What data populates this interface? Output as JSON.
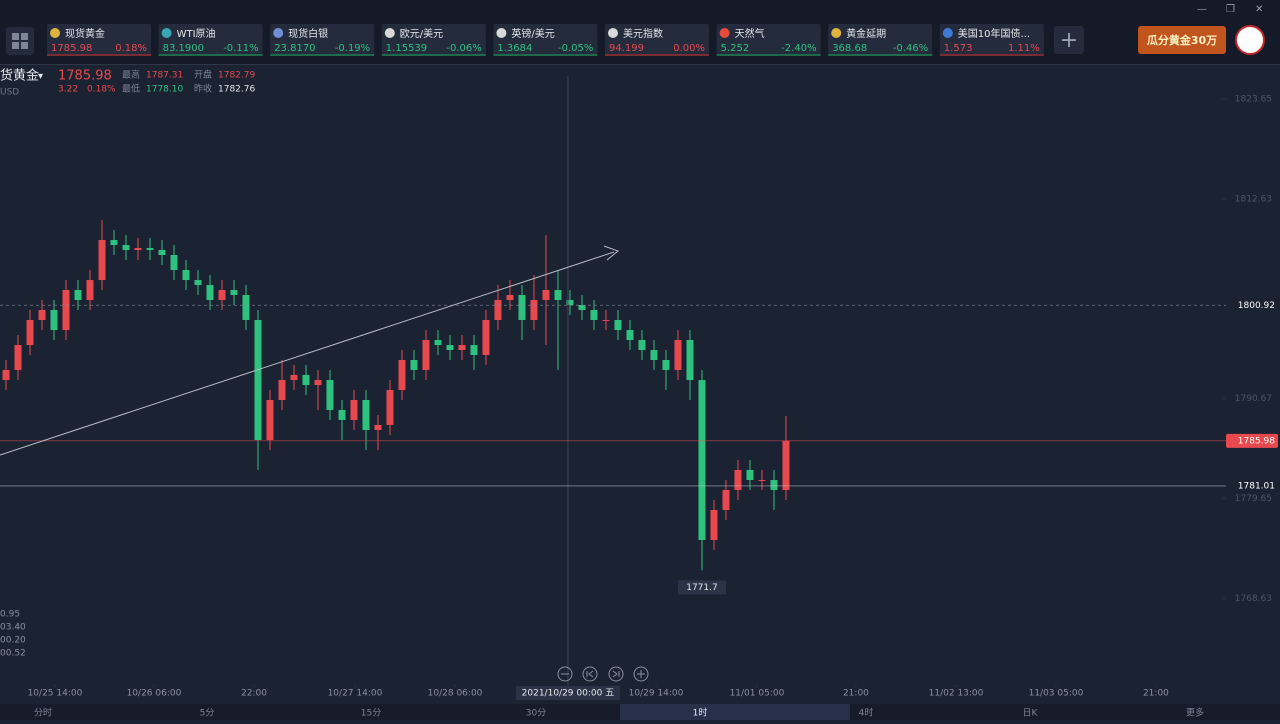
{
  "tickers": [
    {
      "name": "现货黄金",
      "price": "1785.98",
      "change": "0.18%"
    },
    {
      "name": "WTI原油",
      "price": "83.1900",
      "change": "-0.11%"
    },
    {
      "name": "现货白银",
      "price": "23.8170",
      "change": "-0.19%"
    },
    {
      "name": "欧元/美元",
      "price": "1.15539",
      "change": "-0.06%"
    },
    {
      "name": "英镑/美元",
      "price": "1.3684",
      "change": "-0.05%"
    },
    {
      "name": "美元指数",
      "price": "94.199",
      "change": "0.00%"
    },
    {
      "name": "天然气",
      "price": "5.252",
      "change": "-2.40%"
    },
    {
      "name": "黄金延期",
      "price": "368.68",
      "change": "-0.46%"
    },
    {
      "name": "美国10年国债...",
      "price": "1.573",
      "change": "1.11%"
    }
  ],
  "ad": {
    "text": "瓜分黄金30万"
  },
  "header": {
    "symbol": "货黄金",
    "currency": "USD",
    "price": "1785.98",
    "change": "3.22",
    "change_pct": "0.18%",
    "stats": [
      {
        "label": "最高",
        "value": "1787.31"
      },
      {
        "label": "开盘",
        "value": "1782.79"
      },
      {
        "label": "最低",
        "value": "1778.10"
      },
      {
        "label": "昨收",
        "value": "1782.76"
      }
    ]
  },
  "sub_indicator_labels": [
    "0.95",
    "03.40",
    "00.20",
    "00.52"
  ],
  "timeframes": [
    "分时",
    "5分",
    "15分",
    "30分",
    "1时",
    "4时",
    "日K",
    "更多"
  ],
  "chart_data": {
    "type": "candlestick",
    "open": [
      1792.68,
      1793.79,
      1796.54,
      1799.3,
      1800.4,
      1798.19,
      1802.6,
      1801.5,
      1803.7,
      1808.11,
      1807.56,
      1807.01,
      1807.23,
      1807.01,
      1806.46,
      1804.81,
      1803.7,
      1803.15,
      1801.5,
      1802.6,
      1802.05,
      1799.3,
      1786.07,
      1790.48,
      1792.68,
      1793.24,
      1792.13,
      1792.68,
      1789.38,
      1788.28,
      1790.48,
      1787.17,
      1787.73,
      1791.58,
      1794.89,
      1793.79,
      1797.09,
      1796.54,
      1795.99,
      1796.54,
      1795.44,
      1799.3,
      1801.5,
      1802.05,
      1799.3,
      1801.5,
      1802.6,
      1801.5,
      1800.95,
      1800.4,
      1799.3,
      1799.3,
      1798.19,
      1797.09,
      1795.99,
      1794.89,
      1793.79,
      1797.09,
      1792.68,
      1775.05,
      1778.36,
      1780.56,
      1782.77,
      1781.66,
      1781.66,
      1780.56
    ],
    "high": [
      1794.89,
      1797.64,
      1800.4,
      1801.5,
      1801.5,
      1803.7,
      1803.7,
      1804.8,
      1810.3,
      1809.21,
      1808.66,
      1808.33,
      1808.33,
      1808.11,
      1807.56,
      1805.91,
      1804.8,
      1804.25,
      1803.7,
      1803.7,
      1803.15,
      1800.4,
      1791.58,
      1794.89,
      1794.34,
      1794.34,
      1793.78,
      1793.78,
      1790.48,
      1791.58,
      1791.58,
      1788.83,
      1792.68,
      1795.99,
      1795.99,
      1798.19,
      1798.19,
      1797.64,
      1797.64,
      1797.64,
      1800.4,
      1803.15,
      1803.7,
      1803.15,
      1804.25,
      1808.66,
      1804.8,
      1802.6,
      1802.05,
      1801.5,
      1800.4,
      1800.4,
      1799.3,
      1798.19,
      1797.09,
      1795.99,
      1798.19,
      1798.19,
      1793.78,
      1779.46,
      1781.66,
      1783.87,
      1783.87,
      1782.77,
      1782.77,
      1788.7
    ],
    "low": [
      1791.58,
      1792.69,
      1795.44,
      1798.2,
      1797.09,
      1797.09,
      1800.4,
      1800.4,
      1802.6,
      1806.46,
      1805.91,
      1805.91,
      1805.91,
      1805.36,
      1803.71,
      1802.6,
      1802.05,
      1800.4,
      1800.4,
      1800.95,
      1798.2,
      1782.77,
      1784.97,
      1789.38,
      1791.58,
      1791.03,
      1789.38,
      1788.28,
      1786.07,
      1787.17,
      1784.97,
      1784.97,
      1786.63,
      1790.48,
      1792.69,
      1792.69,
      1795.44,
      1794.89,
      1794.89,
      1793.79,
      1794.34,
      1798.2,
      1800.4,
      1797.09,
      1798.2,
      1796.54,
      1793.79,
      1799.85,
      1799.3,
      1798.2,
      1798.19,
      1797.09,
      1795.99,
      1794.89,
      1793.79,
      1791.58,
      1792.69,
      1790.48,
      1771.7,
      1773.95,
      1777.26,
      1779.46,
      1780.56,
      1780.56,
      1778.36,
      1779.46
    ],
    "close": [
      1793.79,
      1796.54,
      1799.3,
      1800.4,
      1798.19,
      1802.6,
      1801.5,
      1803.7,
      1808.11,
      1807.56,
      1807.01,
      1807.23,
      1807.01,
      1806.46,
      1804.81,
      1803.7,
      1803.15,
      1801.5,
      1802.6,
      1802.05,
      1799.3,
      1786.07,
      1790.48,
      1792.68,
      1793.24,
      1792.13,
      1792.68,
      1789.38,
      1788.28,
      1790.48,
      1787.17,
      1787.73,
      1791.58,
      1794.89,
      1793.79,
      1797.09,
      1796.54,
      1795.99,
      1796.54,
      1795.44,
      1799.3,
      1801.5,
      1802.05,
      1799.3,
      1801.5,
      1802.6,
      1801.5,
      1800.95,
      1800.4,
      1799.3,
      1799.3,
      1798.19,
      1797.09,
      1795.99,
      1794.89,
      1793.79,
      1797.09,
      1792.68,
      1775.05,
      1778.36,
      1780.56,
      1782.77,
      1781.66,
      1781.66,
      1780.56,
      1785.98
    ],
    "up_color": "#e8494f",
    "down_color": "#2ec27e",
    "xlim": [
      -0.5,
      101.17
    ],
    "xticks": [
      {
        "value": 4.08,
        "label": "10/25 14:00"
      },
      {
        "value": 12.33,
        "label": "10/26 06:00"
      },
      {
        "value": 20.67,
        "label": "22:00"
      },
      {
        "value": 29.08,
        "label": "10/27 14:00"
      },
      {
        "value": 37.42,
        "label": "10/28 06:00"
      },
      {
        "value": 46.83,
        "label": "2021/10/29 00:00 五"
      },
      {
        "value": 54.17,
        "label": "10/29 14:00"
      },
      {
        "value": 62.58,
        "label": "11/01 05:00"
      },
      {
        "value": 70.83,
        "label": "21:00"
      },
      {
        "value": 79.17,
        "label": "11/02 13:00"
      },
      {
        "value": 87.5,
        "label": "11/03 05:00"
      },
      {
        "value": 95.83,
        "label": "21:00"
      }
    ],
    "ylim": [
      1759.07,
      1827.29
    ],
    "yticks": [
      1823.65,
      1812.63,
      1790.67,
      1779.65,
      1768.63
    ],
    "price_lines": [
      {
        "value": 1800.92,
        "color": "#8a8f9c"
      },
      {
        "value": 1785.98,
        "color": "#e8494f"
      },
      {
        "value": 1781.01,
        "color": "#c9ccd3"
      }
    ],
    "low_marker": 1771.7,
    "crosshair_tick": 5
  }
}
